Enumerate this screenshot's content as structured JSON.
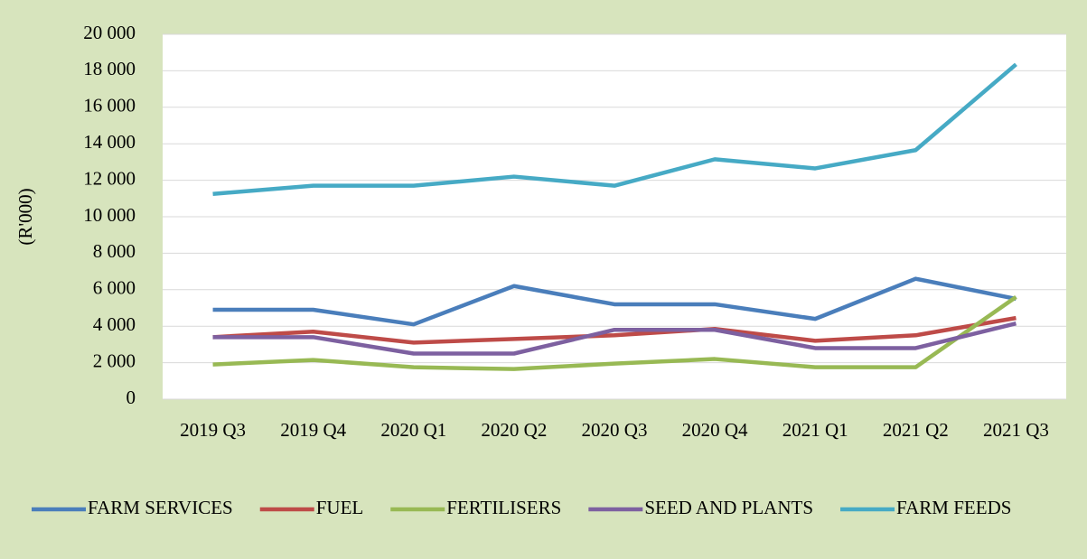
{
  "chart_data": {
    "type": "line",
    "y_label": "(R'000)",
    "categories": [
      "2019 Q3",
      "2019 Q4",
      "2020 Q1",
      "2020 Q2",
      "2020 Q3",
      "2020 Q4",
      "2021 Q1",
      "2021 Q2",
      "2021 Q3"
    ],
    "series": [
      {
        "name": "FARM SERVICES",
        "color": "#4a7ebb",
        "values": [
          4900,
          4900,
          4100,
          6200,
          5200,
          5200,
          4400,
          6600,
          5500
        ]
      },
      {
        "name": "FUEL",
        "color": "#be4b48",
        "values": [
          3400,
          3700,
          3100,
          3300,
          3500,
          3850,
          3200,
          3500,
          4450
        ]
      },
      {
        "name": "FERTILISERS",
        "color": "#98b954",
        "values": [
          1900,
          2150,
          1750,
          1650,
          1950,
          2200,
          1750,
          1750,
          5600
        ]
      },
      {
        "name": "SEED AND PLANTS",
        "color": "#7d60a0",
        "values": [
          3400,
          3400,
          2500,
          2500,
          3800,
          3800,
          2800,
          2800,
          4150
        ]
      },
      {
        "name": "FARM FEEDS",
        "color": "#46aac5",
        "values": [
          11250,
          11700,
          11700,
          12200,
          11700,
          13150,
          12650,
          13650,
          18350
        ]
      }
    ],
    "ylim": [
      0,
      20000
    ],
    "yticks": [
      0,
      {
        "value": 2000,
        "label": "2 000"
      },
      {
        "value": 4000,
        "label": "4 000"
      },
      {
        "value": 6000,
        "label": "6 000"
      },
      {
        "value": 8000,
        "label": "8 000"
      },
      {
        "value": 10000,
        "label": "10 000"
      },
      {
        "value": 12000,
        "label": "12 000"
      },
      {
        "value": 14000,
        "label": "14 000"
      },
      {
        "value": 16000,
        "label": "16 000"
      },
      {
        "value": 18000,
        "label": "18 000"
      },
      {
        "value": 20000,
        "label": "20 000"
      }
    ],
    "grid": true,
    "legend": "bottom"
  }
}
